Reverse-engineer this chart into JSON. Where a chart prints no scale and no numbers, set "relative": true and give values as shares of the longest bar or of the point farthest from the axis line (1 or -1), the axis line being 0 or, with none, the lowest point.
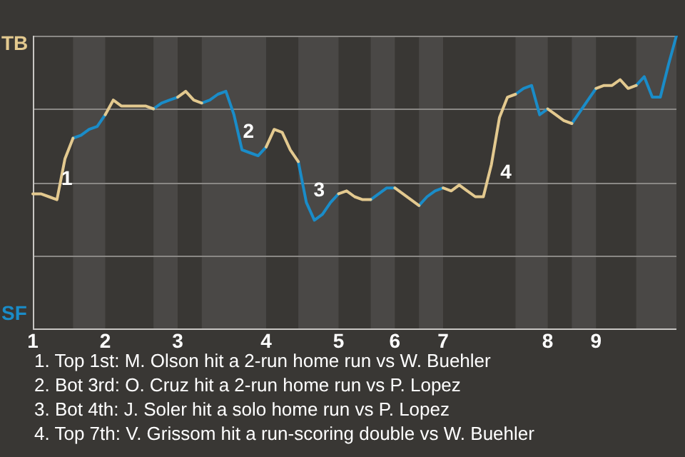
{
  "chart_data": {
    "type": "line",
    "relative": true,
    "categories": [
      "1",
      null,
      null,
      null,
      null,
      null,
      null,
      null,
      null,
      "2",
      null,
      null,
      null,
      null,
      null,
      null,
      null,
      null,
      "3",
      null,
      null,
      null,
      null,
      null,
      null,
      null,
      null,
      null,
      null,
      "4",
      null,
      null,
      null,
      null,
      null,
      null,
      null,
      null,
      "5",
      null,
      null,
      null,
      null,
      null,
      null,
      "6",
      null,
      null,
      null,
      null,
      null,
      "7",
      null,
      null,
      null,
      null,
      null,
      null,
      null,
      null,
      null,
      null,
      null,
      null,
      "8",
      null,
      null,
      null,
      null,
      null,
      "9",
      null,
      null,
      null,
      null,
      null,
      null,
      null,
      null,
      null,
      null
    ],
    "grid": "y",
    "legend": false,
    "marker": "none",
    "line_style": "solid",
    "series": [
      {
        "name": "TB",
        "color": "#e3c98f",
        "values": [
          0.46,
          0.46,
          0.45,
          0.44,
          0.58,
          0.65,
          null,
          null,
          null,
          0.73,
          0.78,
          0.76,
          0.76,
          0.76,
          0.76,
          0.75,
          null,
          null,
          0.79,
          0.81,
          0.78,
          0.77,
          null,
          null,
          null,
          null,
          null,
          null,
          null,
          0.62,
          0.68,
          0.67,
          0.61,
          0.57,
          null,
          null,
          null,
          null,
          0.46,
          0.47,
          0.45,
          0.44,
          0.44,
          null,
          null,
          0.48,
          0.46,
          0.44,
          0.42,
          null,
          null,
          0.48,
          0.47,
          0.49,
          0.47,
          0.45,
          0.45,
          0.56,
          0.72,
          0.79,
          0.8,
          null,
          null,
          null,
          0.75,
          0.73,
          0.71,
          0.7,
          null,
          null,
          0.82,
          0.83,
          0.83,
          0.85,
          0.82,
          0.83,
          null,
          null,
          null,
          null,
          null
        ]
      },
      {
        "name": "SF",
        "color": "#1a8cc8",
        "values": [
          null,
          null,
          null,
          null,
          null,
          0.65,
          0.66,
          0.68,
          0.69,
          0.73,
          null,
          null,
          null,
          null,
          null,
          0.75,
          0.77,
          0.78,
          0.79,
          null,
          null,
          0.77,
          0.78,
          0.8,
          0.81,
          0.73,
          0.61,
          0.6,
          0.59,
          0.62,
          null,
          null,
          null,
          0.57,
          0.43,
          0.37,
          0.39,
          0.43,
          0.46,
          null,
          null,
          null,
          0.44,
          0.46,
          0.48,
          0.48,
          null,
          null,
          0.42,
          0.45,
          0.47,
          0.48,
          null,
          null,
          null,
          null,
          null,
          null,
          null,
          null,
          0.8,
          0.82,
          0.83,
          0.73,
          0.75,
          null,
          null,
          0.7,
          0.74,
          0.78,
          0.82,
          null,
          null,
          null,
          null,
          0.83,
          0.86,
          0.79,
          0.79,
          0.9,
          1
        ]
      }
    ],
    "annotations": [
      "1",
      "2",
      "3",
      "4",
      "1. Top 1st: M. Olson hit a 2-run home run vs W. Buehler",
      "2. Bot 3rd: O. Cruz hit a 2-run home run vs P. Lopez",
      "3. Bot 4th: J. Soler hit a solo home run vs P. Lopez",
      "4. Top 7th: V. Grissom hit a run-scoring double vs W. Buehler"
    ]
  }
}
